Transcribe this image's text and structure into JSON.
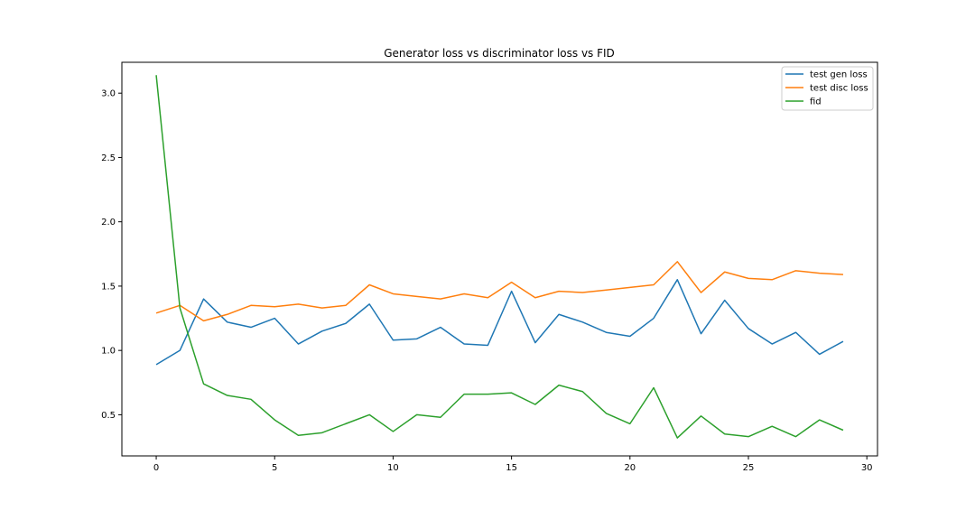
{
  "chart_data": {
    "type": "line",
    "title": "Generator loss vs discriminator loss vs FID",
    "xlabel": "",
    "ylabel": "",
    "xlim": [
      -1.45,
      30.45
    ],
    "ylim": [
      0.18,
      3.24
    ],
    "xticks": [
      0,
      5,
      10,
      15,
      20,
      25,
      30
    ],
    "xtick_labels": [
      "0",
      "5",
      "10",
      "15",
      "20",
      "25",
      "30"
    ],
    "yticks": [
      0.5,
      1.0,
      1.5,
      2.0,
      2.5,
      3.0
    ],
    "ytick_labels": [
      "0.5",
      "1.0",
      "1.5",
      "2.0",
      "2.5",
      "3.0"
    ],
    "grid": false,
    "legend_position": "top-right",
    "x": [
      0,
      1,
      2,
      3,
      4,
      5,
      6,
      7,
      8,
      9,
      10,
      11,
      12,
      13,
      14,
      15,
      16,
      17,
      18,
      19,
      20,
      21,
      22,
      23,
      24,
      25,
      26,
      27,
      28,
      29
    ],
    "series": [
      {
        "name": "test gen loss",
        "color": "#1f77b4",
        "values": [
          0.89,
          1.0,
          1.4,
          1.22,
          1.18,
          1.25,
          1.05,
          1.15,
          1.21,
          1.36,
          1.08,
          1.09,
          1.18,
          1.05,
          1.04,
          1.46,
          1.06,
          1.28,
          1.22,
          1.14,
          1.11,
          1.25,
          1.55,
          1.13,
          1.39,
          1.17,
          1.05,
          1.14,
          0.97,
          1.07
        ]
      },
      {
        "name": "test disc loss",
        "color": "#ff7f0e",
        "values": [
          1.29,
          1.35,
          1.23,
          1.28,
          1.35,
          1.34,
          1.36,
          1.33,
          1.35,
          1.51,
          1.44,
          1.42,
          1.4,
          1.44,
          1.41,
          1.53,
          1.41,
          1.46,
          1.45,
          1.47,
          1.49,
          1.51,
          1.69,
          1.45,
          1.61,
          1.56,
          1.55,
          1.62,
          1.6,
          1.59
        ]
      },
      {
        "name": "fid",
        "color": "#2ca02c",
        "values": [
          3.14,
          1.33,
          0.74,
          0.65,
          0.62,
          0.46,
          0.34,
          0.36,
          0.43,
          0.5,
          0.37,
          0.5,
          0.48,
          0.66,
          0.66,
          0.67,
          0.58,
          0.73,
          0.68,
          0.51,
          0.43,
          0.71,
          0.32,
          0.49,
          0.35,
          0.33,
          0.41,
          0.33,
          0.46,
          0.38
        ]
      }
    ]
  }
}
